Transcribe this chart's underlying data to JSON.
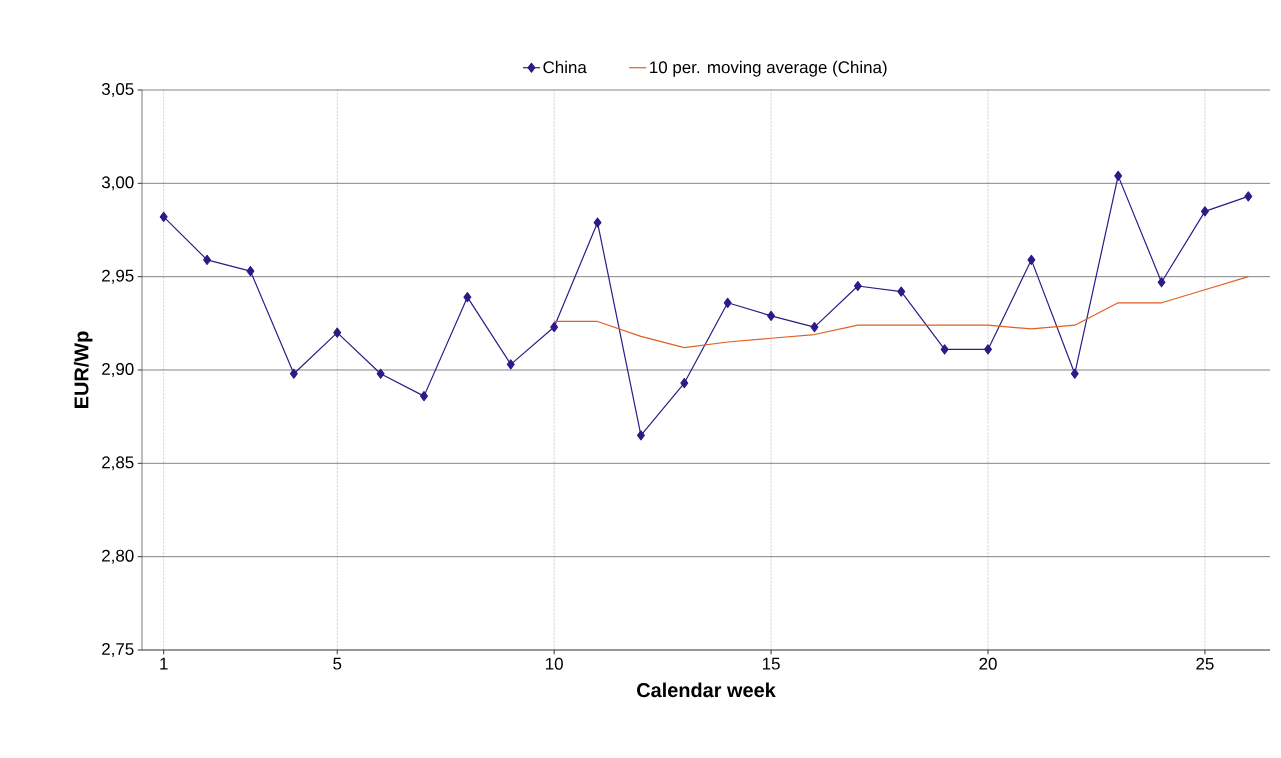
{
  "chart_data": {
    "type": "line",
    "xlabel": "Calendar week",
    "ylabel": "EUR/Wp",
    "x": [
      1,
      2,
      3,
      4,
      5,
      6,
      7,
      8,
      9,
      10,
      11,
      12,
      13,
      14,
      15,
      16,
      17,
      18,
      19,
      20,
      21,
      22,
      23,
      24,
      25,
      26
    ],
    "series": [
      {
        "name": "China",
        "color": "#2e1a87",
        "marker": "diamond",
        "values": [
          2.982,
          2.959,
          2.953,
          2.898,
          2.92,
          2.898,
          2.886,
          2.939,
          2.903,
          2.923,
          2.979,
          2.865,
          2.893,
          2.936,
          2.929,
          2.923,
          2.945,
          2.942,
          2.911,
          2.911,
          2.959,
          2.898,
          3.004,
          2.947,
          2.985,
          2.993
        ]
      },
      {
        "name": "10 per. moving average (China)",
        "color": "#e06020",
        "marker": "none",
        "values": [
          null,
          null,
          null,
          null,
          null,
          null,
          null,
          null,
          null,
          2.926,
          2.926,
          2.918,
          2.912,
          2.915,
          2.917,
          2.919,
          2.924,
          2.924,
          2.924,
          2.924,
          2.922,
          2.924,
          2.936,
          2.936,
          2.943,
          2.95
        ]
      }
    ],
    "xlim": [
      0.5,
      26.5
    ],
    "xticks": [
      1,
      5,
      10,
      15,
      20,
      25
    ],
    "ylim": [
      2.75,
      3.05
    ],
    "yticks": [
      {
        "value": 2.75,
        "label": "2,75"
      },
      {
        "value": 2.8,
        "label": "2,80"
      },
      {
        "value": 2.85,
        "label": "2,85"
      },
      {
        "value": 2.9,
        "label": "2,90"
      },
      {
        "value": 2.95,
        "label": "2,95"
      },
      {
        "value": 3.0,
        "label": "3,00"
      },
      {
        "value": 3.05,
        "label": "3,05"
      }
    ],
    "grid": true,
    "legend": "top",
    "line_style": "solid"
  }
}
